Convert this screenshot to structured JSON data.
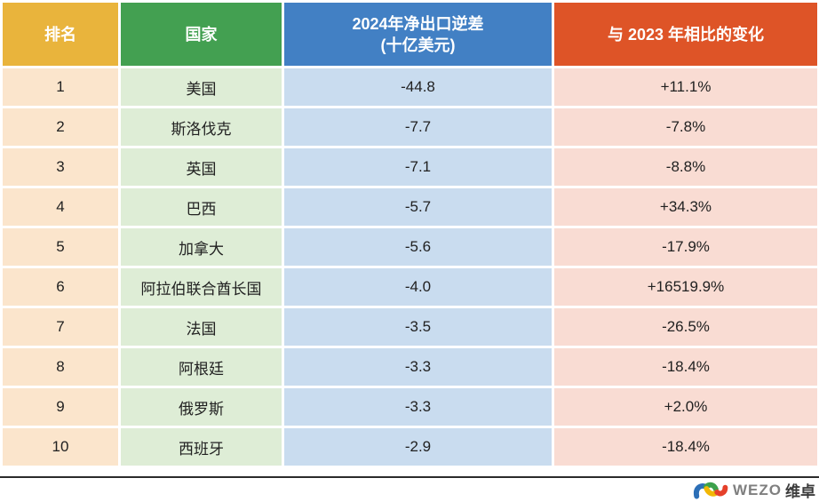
{
  "table": {
    "headers": {
      "rank": "排名",
      "country": "国家",
      "deficit_line1": "2024年净出口逆差",
      "deficit_line2": "(十亿美元)",
      "change": "与 2023 年相比的变化"
    },
    "rows": [
      {
        "rank": "1",
        "country": "美国",
        "deficit": "-44.8",
        "change": "+11.1%"
      },
      {
        "rank": "2",
        "country": "斯洛伐克",
        "deficit": "-7.7",
        "change": "-7.8%"
      },
      {
        "rank": "3",
        "country": "英国",
        "deficit": "-7.1",
        "change": "-8.8%"
      },
      {
        "rank": "4",
        "country": "巴西",
        "deficit": "-5.7",
        "change": "+34.3%"
      },
      {
        "rank": "5",
        "country": "加拿大",
        "deficit": "-5.6",
        "change": "-17.9%"
      },
      {
        "rank": "6",
        "country": "阿拉伯联合酋长国",
        "deficit": "-4.0",
        "change": "+16519.9%"
      },
      {
        "rank": "7",
        "country": "法国",
        "deficit": "-3.5",
        "change": "-26.5%"
      },
      {
        "rank": "8",
        "country": "阿根廷",
        "deficit": "-3.3",
        "change": "-18.4%"
      },
      {
        "rank": "9",
        "country": "俄罗斯",
        "deficit": "-3.3",
        "change": "+2.0%"
      },
      {
        "rank": "10",
        "country": "西班牙",
        "deficit": "-2.9",
        "change": "-18.4%"
      }
    ]
  },
  "footer": {
    "brand_latin": "WEZO",
    "brand_cjk": "维卓",
    "logo_icon": "wezo-wave-icon"
  },
  "colors": {
    "header_rank": "#E9B43C",
    "header_country": "#43A051",
    "header_deficit": "#4280C4",
    "header_change": "#DE5427",
    "body_rank": "#FBE5CC",
    "body_country": "#DEEDD6",
    "body_deficit": "#C9DCEF",
    "body_change": "#F9DCD3",
    "logo_blue": "#2C6FB7",
    "logo_green": "#3DA14C",
    "logo_yellow": "#F2B705",
    "logo_red": "#E5402A"
  },
  "chart_data": {
    "type": "table",
    "title": "2024年净出口逆差排名前十的国家",
    "columns": [
      "排名",
      "国家",
      "2024年净出口逆差(十亿美元)",
      "与 2023 年相比的变化"
    ],
    "rows": [
      [
        1,
        "美国",
        -44.8,
        "+11.1%"
      ],
      [
        2,
        "斯洛伐克",
        -7.7,
        "-7.8%"
      ],
      [
        3,
        "英国",
        -7.1,
        "-8.8%"
      ],
      [
        4,
        "巴西",
        -5.7,
        "+34.3%"
      ],
      [
        5,
        "加拿大",
        -5.6,
        "-17.9%"
      ],
      [
        6,
        "阿拉伯联合酋长国",
        -4.0,
        "+16519.9%"
      ],
      [
        7,
        "法国",
        -3.5,
        "-26.5%"
      ],
      [
        8,
        "阿根廷",
        -3.3,
        "-18.4%"
      ],
      [
        9,
        "俄罗斯",
        -3.3,
        "+2.0%"
      ],
      [
        10,
        "西班牙",
        -2.9,
        "-18.4%"
      ]
    ]
  }
}
